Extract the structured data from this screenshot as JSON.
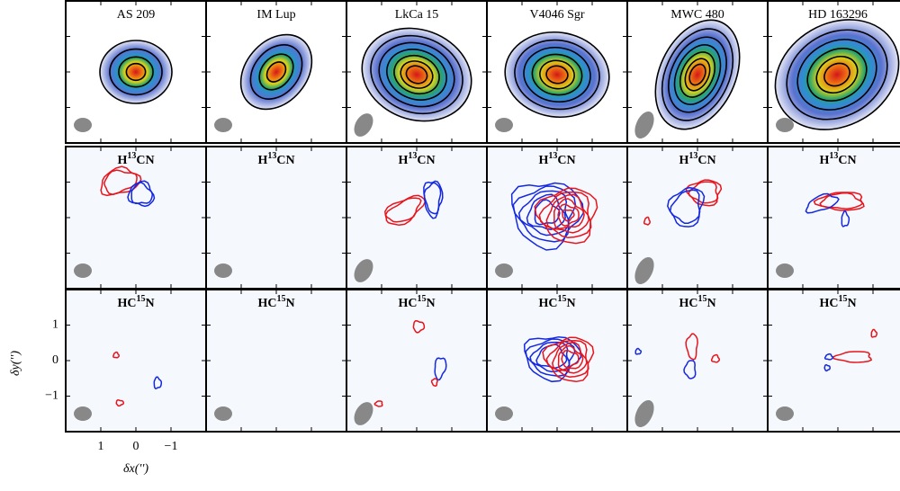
{
  "figure": {
    "sources": [
      "AS 209",
      "IM Lup",
      "LkCa 15",
      "V4046 Sgr",
      "MWC 480",
      "HD 163296"
    ],
    "lines": [
      {
        "pre": "H",
        "sup": "13",
        "post": "CN"
      },
      {
        "pre": "HC",
        "sup": "15",
        "post": "N"
      }
    ],
    "x_label": "δx('')",
    "y_label": "δy('')",
    "xlim": [
      2,
      -2
    ],
    "ylim": [
      -2,
      2
    ],
    "xticks": [
      1,
      0,
      {
        "value": -1,
        "label": "−1"
      }
    ],
    "yticks": [
      {
        "value": -1,
        "label": "−1"
      },
      0,
      1
    ]
  }
}
